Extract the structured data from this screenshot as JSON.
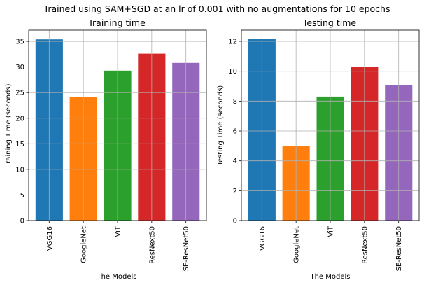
{
  "suptitle": "Trained using SAM+SGD at an lr of 0.001 with no augmentations for 10 epochs",
  "colors": [
    "#1f77b4",
    "#ff7f0e",
    "#2ca02c",
    "#d62728",
    "#9467bd"
  ],
  "chart_data": [
    {
      "type": "bar",
      "title": "Training time",
      "xlabel": "The Models",
      "ylabel": "Training Time (seconds)",
      "categories": [
        "VGG16",
        "GoogleNet",
        "ViT",
        "ResNext50",
        "SE-ResNet50"
      ],
      "values": [
        35.4,
        24.1,
        29.3,
        32.6,
        30.8
      ],
      "ylim": [
        0,
        37.2
      ],
      "yticks": [
        0,
        5,
        10,
        15,
        20,
        25,
        30,
        35
      ],
      "grid": true
    },
    {
      "type": "bar",
      "title": "Testing time",
      "xlabel": "The Models",
      "ylabel": "Testing Time (seconds)",
      "categories": [
        "VGG16",
        "GoogleNet",
        "ViT",
        "ResNext50",
        "SE-ResNet50"
      ],
      "values": [
        12.15,
        4.98,
        8.3,
        10.28,
        9.05
      ],
      "ylim": [
        0,
        12.75
      ],
      "yticks": [
        0,
        2,
        4,
        6,
        8,
        10,
        12
      ],
      "grid": true
    }
  ]
}
